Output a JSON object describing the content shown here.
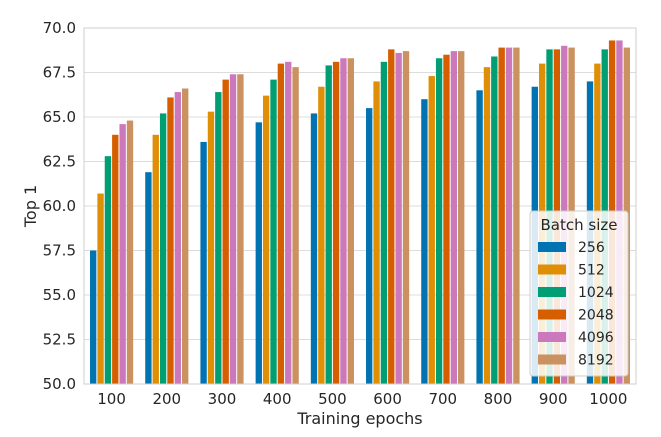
{
  "chart_data": {
    "type": "bar",
    "xlabel": "Training epochs",
    "ylabel": "Top 1",
    "ylim": [
      50.0,
      70.0
    ],
    "yticks": [
      "50.0",
      "52.5",
      "55.0",
      "57.5",
      "60.0",
      "62.5",
      "65.0",
      "67.5",
      "70.0"
    ],
    "grid": "horizontal",
    "legend": {
      "title": "Batch size",
      "placement": "bottom-right"
    },
    "categories": [
      "100",
      "200",
      "300",
      "400",
      "500",
      "600",
      "700",
      "800",
      "900",
      "1000"
    ],
    "series": [
      {
        "name": "256",
        "color": "#0173b2",
        "values": [
          57.5,
          61.9,
          63.6,
          64.7,
          65.2,
          65.5,
          66.0,
          66.5,
          66.7,
          67.0
        ]
      },
      {
        "name": "512",
        "color": "#de8f05",
        "values": [
          60.7,
          64.0,
          65.3,
          66.2,
          66.7,
          67.0,
          67.3,
          67.8,
          68.0,
          68.0
        ]
      },
      {
        "name": "1024",
        "color": "#029e73",
        "values": [
          62.8,
          65.2,
          66.4,
          67.1,
          67.9,
          68.1,
          68.3,
          68.4,
          68.8,
          68.8
        ]
      },
      {
        "name": "2048",
        "color": "#d55e00",
        "values": [
          64.0,
          66.1,
          67.1,
          68.0,
          68.1,
          68.8,
          68.5,
          68.9,
          68.8,
          69.3
        ]
      },
      {
        "name": "4096",
        "color": "#cc78bc",
        "values": [
          64.6,
          66.4,
          67.4,
          68.1,
          68.3,
          68.6,
          68.7,
          68.9,
          69.0,
          69.3
        ]
      },
      {
        "name": "8192",
        "color": "#ca9161",
        "values": [
          64.8,
          66.6,
          67.4,
          67.8,
          68.3,
          68.7,
          68.7,
          68.9,
          68.9,
          68.9
        ]
      }
    ]
  }
}
